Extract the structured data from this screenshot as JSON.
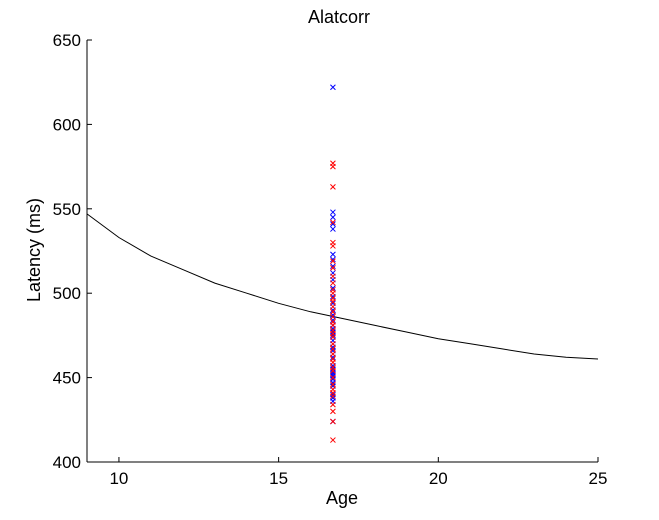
{
  "chart_data": {
    "type": "scatter",
    "title": "Alatcorr",
    "xlabel": "Age",
    "ylabel": "Latency (ms)",
    "xlim": [
      9,
      25
    ],
    "ylim": [
      400,
      650
    ],
    "xticks": [
      10,
      15,
      20,
      25
    ],
    "yticks": [
      400,
      450,
      500,
      550,
      600,
      650
    ],
    "grid": false,
    "legend": "none",
    "series": [
      {
        "type": "line",
        "color": "#000000",
        "x": [
          9,
          10,
          11,
          12,
          13,
          14,
          15,
          16,
          17,
          18,
          19,
          20,
          21,
          22,
          23,
          24,
          25
        ],
        "y": [
          547,
          533,
          522,
          514,
          506,
          500,
          494,
          489,
          485,
          481,
          477,
          473,
          470,
          467,
          464,
          462,
          461
        ]
      },
      {
        "type": "scatter",
        "marker": "x",
        "color": "#0000ff",
        "x": [
          16.7,
          16.7,
          16.7,
          16.7,
          16.7,
          16.7,
          16.7,
          16.7,
          16.7,
          16.7,
          16.7,
          16.7,
          16.7,
          16.7,
          16.7,
          16.7,
          16.7,
          16.7,
          16.7,
          16.7,
          16.7,
          16.7,
          16.7,
          16.7,
          16.7,
          16.7,
          16.7,
          16.7,
          16.7,
          16.7,
          16.7,
          16.7,
          16.7,
          16.7,
          16.7,
          16.7
        ],
        "y": [
          622,
          548,
          545,
          541,
          538,
          523,
          520,
          516,
          512,
          508,
          503,
          498,
          494,
          490,
          487,
          484,
          481,
          479,
          477,
          475,
          472,
          468,
          466,
          462,
          457,
          455,
          453,
          451,
          449,
          447,
          445,
          440,
          438,
          436,
          424,
          452
        ]
      },
      {
        "type": "scatter",
        "marker": "x",
        "color": "#ff0000",
        "x": [
          16.7,
          16.7,
          16.7,
          16.7,
          16.7,
          16.7,
          16.7,
          16.7,
          16.7,
          16.7,
          16.7,
          16.7,
          16.7,
          16.7,
          16.7,
          16.7,
          16.7,
          16.7,
          16.7,
          16.7,
          16.7,
          16.7,
          16.7,
          16.7,
          16.7,
          16.7,
          16.7,
          16.7,
          16.7,
          16.7,
          16.7,
          16.7,
          16.7,
          16.7,
          16.7,
          16.7,
          16.7,
          16.7
        ],
        "y": [
          577,
          575,
          563,
          542,
          530,
          528,
          519,
          515,
          510,
          506,
          502,
          500,
          497,
          495,
          492,
          489,
          486,
          483,
          481,
          478,
          476,
          474,
          470,
          467,
          464,
          461,
          459,
          456,
          454,
          450,
          446,
          443,
          441,
          439,
          434,
          430,
          424,
          413
        ]
      }
    ]
  }
}
